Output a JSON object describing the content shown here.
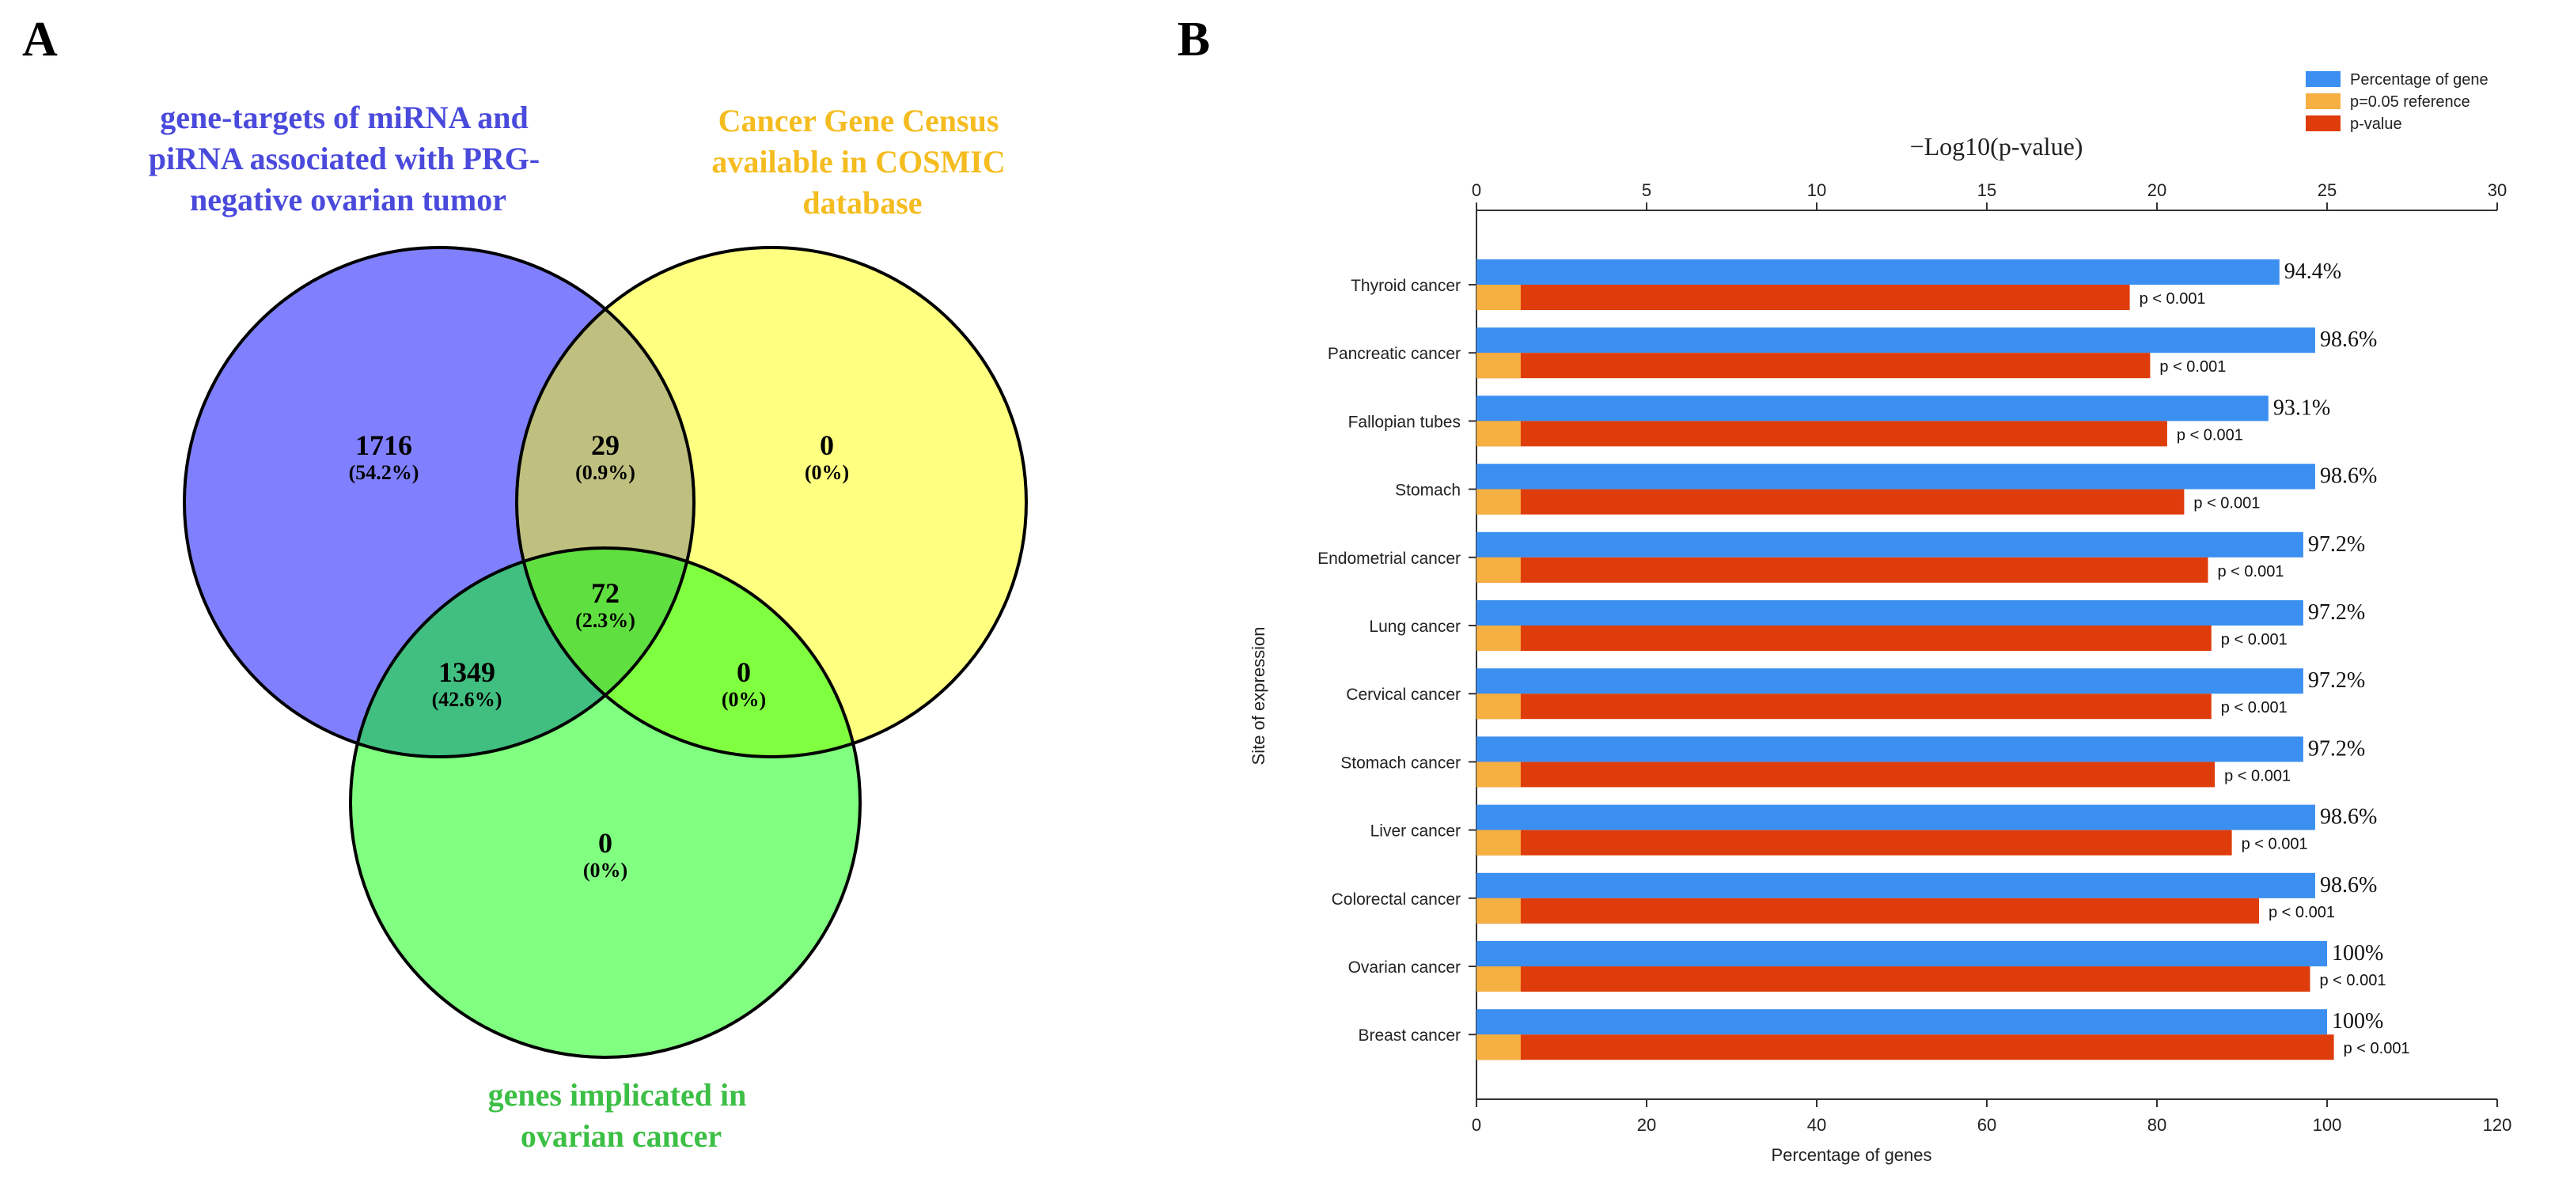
{
  "panels": {
    "a_label": "A",
    "b_label": "B"
  },
  "venn": {
    "set_labels": [
      {
        "lines": [
          "gene-targets of miRNA and",
          "piRNA associated with PRG-",
          "negative ovarian tumor"
        ],
        "color": "#4a4adc"
      },
      {
        "lines": [
          "Cancer Gene Census",
          "available in COSMIC",
          "database"
        ],
        "color": "#f5bc1f"
      },
      {
        "lines": [
          "genes implicated in",
          "ovarian cancer"
        ],
        "color": "#3cbf45"
      }
    ],
    "circle_colors": [
      "#8080ff",
      "#ffff80",
      "#80ff80"
    ],
    "regions": [
      {
        "id": "only-a",
        "count": "1716",
        "pct": "(54.2%)",
        "fill": "#8080ff"
      },
      {
        "id": "a-b",
        "count": "29",
        "pct": "(0.9%)",
        "fill": "#bfbf80"
      },
      {
        "id": "only-b",
        "count": "0",
        "pct": "(0%)",
        "fill": "#ffff80"
      },
      {
        "id": "a-c",
        "count": "1349",
        "pct": "(42.6%)",
        "fill": "#40bf80"
      },
      {
        "id": "a-b-c",
        "count": "72",
        "pct": "(2.3%)",
        "fill": "#60df40"
      },
      {
        "id": "b-c",
        "count": "0",
        "pct": "(0%)",
        "fill": "#80ff40"
      },
      {
        "id": "only-c",
        "count": "0",
        "pct": "(0%)",
        "fill": "#80ff80"
      }
    ]
  },
  "chart_data": {
    "type": "bar",
    "orientation": "horizontal",
    "categories": [
      "Thyroid cancer",
      "Pancreatic cancer",
      "Fallopian tubes",
      "Stomach",
      "Endometrial cancer",
      "Lung cancer",
      "Cervical cancer",
      "Stomach cancer",
      "Liver cancer",
      "Colorectal cancer",
      "Ovarian cancer",
      "Breast cancer"
    ],
    "series": [
      {
        "name": "Percentage of gene",
        "color": "#3b8ff0",
        "axis": "bottom",
        "values": [
          94.4,
          98.6,
          93.1,
          98.6,
          97.2,
          97.2,
          97.2,
          97.2,
          98.6,
          98.6,
          100,
          100
        ],
        "labels": [
          "94.4%",
          "98.6%",
          "93.1%",
          "98.6%",
          "97.2%",
          "97.2%",
          "97.2%",
          "97.2%",
          "98.6%",
          "98.6%",
          "100%",
          "100%"
        ]
      },
      {
        "name": "p=0.05 reference",
        "color": "#f5b041",
        "axis": "top",
        "values": [
          1.3,
          1.3,
          1.3,
          1.3,
          1.3,
          1.3,
          1.3,
          1.3,
          1.3,
          1.3,
          1.3,
          1.3
        ]
      },
      {
        "name": "p-value",
        "color": "#df3c0c",
        "axis": "top",
        "values": [
          19.2,
          19.8,
          20.3,
          20.8,
          21.5,
          21.6,
          21.6,
          21.7,
          22.2,
          23.0,
          24.5,
          25.2
        ],
        "labels": [
          "p < 0.001",
          "p < 0.001",
          "p < 0.001",
          "p < 0.001",
          "p < 0.001",
          "p < 0.001",
          "p < 0.001",
          "p < 0.001",
          "p < 0.001",
          "p < 0.001",
          "p < 0.001",
          "p < 0.001"
        ]
      }
    ],
    "title": "−Log10(p-value)",
    "xlabel": "Percentage of genes",
    "ylabel": "Site of expression",
    "xlim_bottom": [
      0,
      120
    ],
    "xticks_bottom": [
      "0",
      "20",
      "40",
      "60",
      "80",
      "100",
      "120"
    ],
    "xlim_top": [
      0,
      30
    ],
    "xticks_top": [
      "0",
      "5",
      "10",
      "15",
      "20",
      "25",
      "30"
    ],
    "legend_position": "top-right",
    "grid": false
  }
}
